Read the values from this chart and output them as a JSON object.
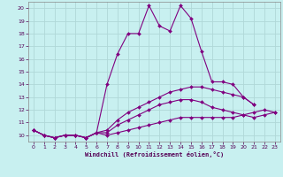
{
  "title": "",
  "xlabel": "Windchill (Refroidissement éolien,°C)",
  "ylabel": "",
  "bg_color": "#c8f0f0",
  "grid_color": "#b0d8d8",
  "line_color": "#800080",
  "x": [
    0,
    1,
    2,
    3,
    4,
    5,
    6,
    7,
    8,
    9,
    10,
    11,
    12,
    13,
    14,
    15,
    16,
    17,
    18,
    19,
    20,
    21,
    22,
    23
  ],
  "line1": [
    10.4,
    10.0,
    9.8,
    10.0,
    10.0,
    9.8,
    10.2,
    14.0,
    16.4,
    18.0,
    18.0,
    20.2,
    18.6,
    18.2,
    20.2,
    19.2,
    16.6,
    14.2,
    14.2,
    14.0,
    13.0,
    12.4,
    null,
    null
  ],
  "line2": [
    10.4,
    10.0,
    9.8,
    10.0,
    10.0,
    9.8,
    10.2,
    10.4,
    11.2,
    11.8,
    12.2,
    12.6,
    13.0,
    13.4,
    13.6,
    13.8,
    13.8,
    13.6,
    13.4,
    13.2,
    13.0,
    12.4,
    null,
    null
  ],
  "line3": [
    10.4,
    10.0,
    9.8,
    10.0,
    10.0,
    9.8,
    10.2,
    10.2,
    10.8,
    11.2,
    11.6,
    12.0,
    12.4,
    12.6,
    12.8,
    12.8,
    12.6,
    12.2,
    12.0,
    11.8,
    11.6,
    11.4,
    11.6,
    11.8
  ],
  "line4": [
    10.4,
    10.0,
    9.8,
    10.0,
    10.0,
    9.8,
    10.2,
    10.0,
    10.2,
    10.4,
    10.6,
    10.8,
    11.0,
    11.2,
    11.4,
    11.4,
    11.4,
    11.4,
    11.4,
    11.4,
    11.6,
    11.8,
    12.0,
    11.8
  ],
  "ylim": [
    9.5,
    20.5
  ],
  "xlim": [
    -0.5,
    23.5
  ],
  "yticks": [
    10,
    11,
    12,
    13,
    14,
    15,
    16,
    17,
    18,
    19,
    20
  ],
  "xticks": [
    0,
    1,
    2,
    3,
    4,
    5,
    6,
    7,
    8,
    9,
    10,
    11,
    12,
    13,
    14,
    15,
    16,
    17,
    18,
    19,
    20,
    21,
    22,
    23
  ]
}
